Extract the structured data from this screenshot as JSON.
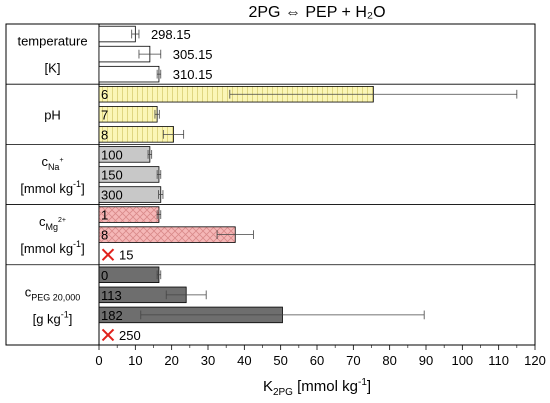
{
  "chart_data": {
    "type": "bar",
    "orientation": "horizontal",
    "title": "2PG ⇔ PEP + H₂O",
    "xlabel": {
      "main": "K",
      "sub": "2PG",
      "unit": " [mmol kg",
      "sup": "-1",
      "close": "]"
    },
    "xlim": [
      0,
      120
    ],
    "xticks": [
      0,
      10,
      20,
      30,
      40,
      50,
      60,
      70,
      80,
      90,
      100,
      110,
      120
    ],
    "grid": false,
    "colors": {
      "white": "#ffffff",
      "yellow": "#fbf6b6",
      "yellow_hatch": "#d8cf73",
      "lightgray": "#c8c8c8",
      "pink": "#f5b7b7",
      "pink_hatch": "#d98a8a",
      "darkgray": "#6e6e6e",
      "cross": "#e0201b"
    },
    "groups": [
      {
        "id": "temperature",
        "label_lines": [
          [
            {
              "t": "temperature"
            }
          ],
          [
            {
              "t": "[K]"
            }
          ]
        ],
        "bars": [
          {
            "label": "298.15",
            "value": 10,
            "error": 1.0,
            "style": "white",
            "label_pos": "outside"
          },
          {
            "label": "305.15",
            "value": 14,
            "error": 3.0,
            "style": "white",
            "label_pos": "outside"
          },
          {
            "label": "310.15",
            "value": 16.5,
            "error": 0.5,
            "style": "white",
            "label_pos": "outside"
          }
        ]
      },
      {
        "id": "pH",
        "label_lines": [
          [
            {
              "t": "pH"
            }
          ]
        ],
        "bars": [
          {
            "label": "6",
            "value": 75.5,
            "error": 39.5,
            "style": "yellow",
            "label_pos": "inside"
          },
          {
            "label": "7",
            "value": 16,
            "error": 0.6,
            "style": "yellow",
            "label_pos": "inside"
          },
          {
            "label": "8",
            "value": 20.5,
            "error": 2.8,
            "style": "yellow",
            "label_pos": "inside"
          }
        ]
      },
      {
        "id": "cNa",
        "label_lines": [
          [
            {
              "t": "c"
            },
            {
              "t": "Na",
              "sub": true
            },
            {
              "t": "+",
              "supsub": true
            }
          ],
          [
            {
              "t": "[mmol kg"
            },
            {
              "t": "-1",
              "sup": true
            },
            {
              "t": "]"
            }
          ]
        ],
        "bars": [
          {
            "label": "100",
            "value": 14,
            "error": 0.5,
            "style": "lightgray",
            "label_pos": "inside"
          },
          {
            "label": "150",
            "value": 16.5,
            "error": 0.5,
            "style": "lightgray",
            "label_pos": "inside"
          },
          {
            "label": "300",
            "value": 17,
            "error": 0.6,
            "style": "lightgray",
            "label_pos": "inside"
          }
        ]
      },
      {
        "id": "cMg",
        "label_lines": [
          [
            {
              "t": "c"
            },
            {
              "t": "Mg",
              "sub": true
            },
            {
              "t": "2+",
              "supsub": true
            }
          ],
          [
            {
              "t": "[mmol kg"
            },
            {
              "t": "-1",
              "sup": true
            },
            {
              "t": "]"
            }
          ]
        ],
        "bars": [
          {
            "label": "1",
            "value": 16.5,
            "error": 0.5,
            "style": "pink",
            "label_pos": "inside"
          },
          {
            "label": "8",
            "value": 37.5,
            "error": 5.0,
            "style": "pink",
            "label_pos": "inside"
          },
          {
            "label": "15",
            "value": null,
            "error": null,
            "style": "none",
            "label_pos": "outside",
            "marker": "X"
          }
        ]
      },
      {
        "id": "cPEG",
        "label_lines": [
          [
            {
              "t": "c"
            },
            {
              "t": "PEG 20,000",
              "sub": true
            }
          ],
          [
            {
              "t": "[g kg"
            },
            {
              "t": "-1",
              "sup": true
            },
            {
              "t": "]"
            }
          ]
        ],
        "bars": [
          {
            "label": "0",
            "value": 16.5,
            "error": 0.5,
            "style": "darkgray",
            "label_pos": "inside"
          },
          {
            "label": "113",
            "value": 24,
            "error": 5.5,
            "style": "darkgray",
            "label_pos": "inside"
          },
          {
            "label": "182",
            "value": 50.5,
            "error": 39.0,
            "style": "darkgray",
            "label_pos": "inside"
          },
          {
            "label": "250",
            "value": null,
            "error": null,
            "style": "none",
            "label_pos": "outside",
            "marker": "X"
          }
        ]
      }
    ]
  }
}
